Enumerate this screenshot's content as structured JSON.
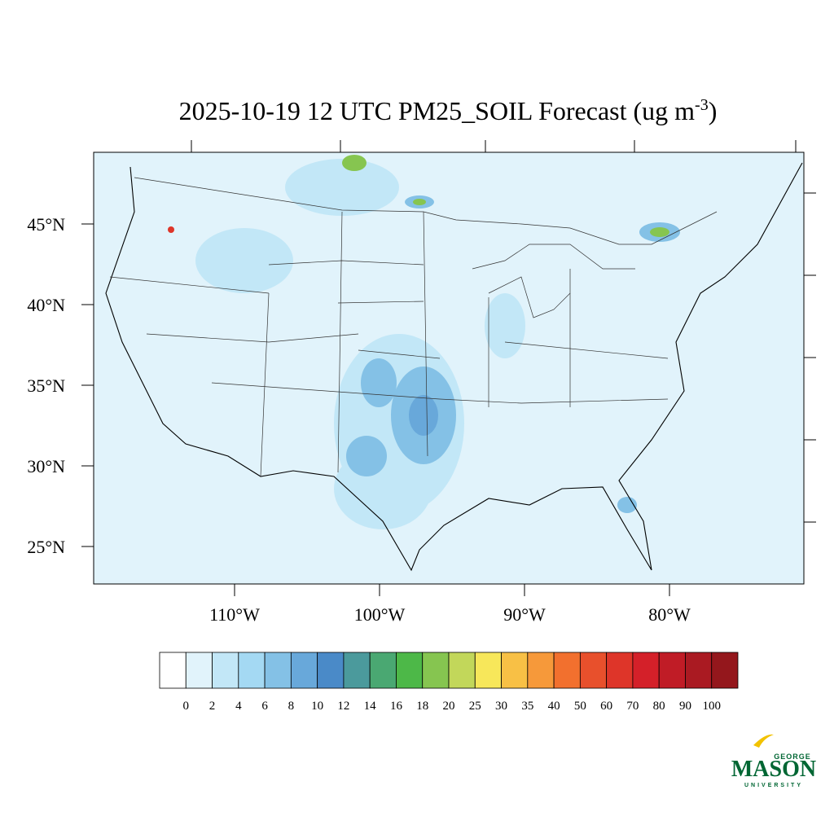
{
  "title": {
    "text": "2025-10-19 12 UTC PM25_SOIL Forecast (ug m",
    "superscript": "-3",
    "closing": ")"
  },
  "map": {
    "lat_labels": [
      "45°N",
      "40°N",
      "35°N",
      "30°N",
      "25°N"
    ],
    "lon_labels": [
      "110°W",
      "100°W",
      "90°W",
      "80°W"
    ]
  },
  "colorbar": {
    "levels": [
      0,
      2,
      4,
      6,
      8,
      10,
      12,
      14,
      16,
      18,
      20,
      25,
      30,
      35,
      40,
      50,
      60,
      70,
      80,
      90,
      100
    ],
    "colors": [
      "#ffffff",
      "#e1f3fb",
      "#c2e7f7",
      "#a4d9f3",
      "#84c1e6",
      "#68a8da",
      "#4a8ac8",
      "#4b9a9c",
      "#4aa872",
      "#4db848",
      "#86c550",
      "#c2d75a",
      "#f7e75a",
      "#f8c045",
      "#f6993a",
      "#f2702e",
      "#e8502c",
      "#de3529",
      "#d42029",
      "#c01c26",
      "#aa1a22",
      "#94171c"
    ]
  },
  "logo": {
    "top": "GEORGE",
    "main": "MASON",
    "bottom": "UNIVERSITY"
  }
}
